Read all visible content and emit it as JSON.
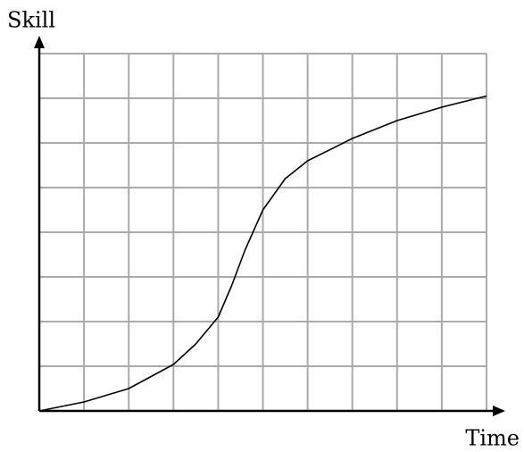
{
  "chart_data": {
    "type": "line",
    "y_label": "Skill",
    "x_label": "Time",
    "x": [
      0,
      1,
      2,
      3,
      3.5,
      4,
      4.3,
      4.6,
      5,
      5.5,
      6,
      7,
      8,
      9,
      10
    ],
    "series": [
      {
        "color": "#000000",
        "values": [
          0,
          0.2,
          0.5,
          1.04,
          1.5,
          2.1,
          2.8,
          3.6,
          4.5,
          5.2,
          5.6,
          6.1,
          6.5,
          6.8,
          7.05
        ]
      }
    ],
    "xlim": [
      0,
      10
    ],
    "ylim": [
      0,
      8
    ],
    "xticks": [
      0,
      1,
      2,
      3,
      4,
      5,
      6,
      7,
      8,
      9,
      10
    ],
    "yticks": [
      0,
      1,
      2,
      3,
      4,
      5,
      6,
      7,
      8
    ],
    "grid": true
  }
}
